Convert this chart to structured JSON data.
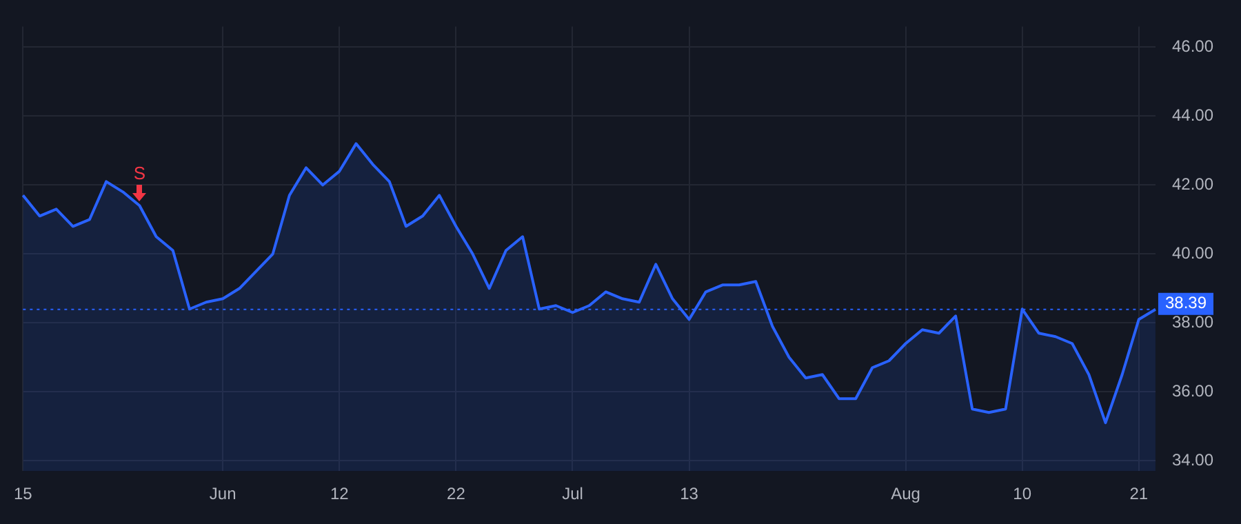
{
  "chart_data": {
    "type": "area",
    "categories": [
      "15",
      null,
      null,
      null,
      null,
      null,
      null,
      null,
      null,
      null,
      null,
      null,
      "Jun",
      null,
      null,
      null,
      null,
      null,
      null,
      "12",
      null,
      null,
      null,
      null,
      null,
      null,
      "22",
      null,
      null,
      null,
      null,
      null,
      null,
      "Jul",
      null,
      null,
      null,
      null,
      null,
      null,
      "13",
      null,
      null,
      null,
      null,
      null,
      null,
      null,
      null,
      null,
      null,
      null,
      null,
      "Aug",
      null,
      null,
      null,
      null,
      null,
      null,
      "10",
      null,
      null,
      null,
      null,
      null,
      null,
      "21",
      null
    ],
    "series": [
      {
        "color": "#2962ff",
        "values": [
          41.7,
          41.1,
          41.3,
          40.8,
          41.0,
          42.1,
          41.8,
          41.4,
          40.5,
          40.1,
          38.4,
          38.6,
          38.7,
          39.0,
          39.5,
          40.0,
          41.7,
          42.5,
          42.0,
          42.4,
          43.2,
          42.6,
          42.1,
          40.8,
          41.1,
          41.7,
          40.8,
          40.0,
          39.0,
          40.1,
          40.5,
          38.4,
          38.5,
          38.3,
          38.5,
          38.9,
          38.7,
          38.6,
          39.7,
          38.7,
          38.1,
          38.9,
          39.1,
          39.1,
          39.2,
          37.9,
          37.0,
          36.4,
          36.5,
          35.8,
          35.8,
          36.7,
          36.9,
          37.4,
          37.8,
          37.7,
          38.2,
          35.5,
          35.4,
          35.5,
          38.4,
          37.7,
          37.6,
          37.4,
          36.5,
          35.1,
          36.5,
          38.1,
          38.39
        ]
      }
    ],
    "ylim": [
      33.7,
      46.6
    ],
    "yticks": [
      {
        "value": 34,
        "label": "34.00"
      },
      {
        "value": 36,
        "label": "36.00"
      },
      {
        "value": 38,
        "label": "38.00"
      },
      {
        "value": 40,
        "label": "40.00"
      },
      {
        "value": 42,
        "label": "42.00"
      },
      {
        "value": 44,
        "label": "44.00"
      },
      {
        "value": 46,
        "label": "46.00"
      }
    ],
    "ref_lines": [
      {
        "axis": "y",
        "value": 38.39,
        "label": "38.39",
        "color": "#2962ff",
        "line_style": "dotted"
      }
    ],
    "annotations": [
      {
        "text": "S",
        "y": 41.4
      }
    ],
    "grid": true,
    "legend": false
  }
}
